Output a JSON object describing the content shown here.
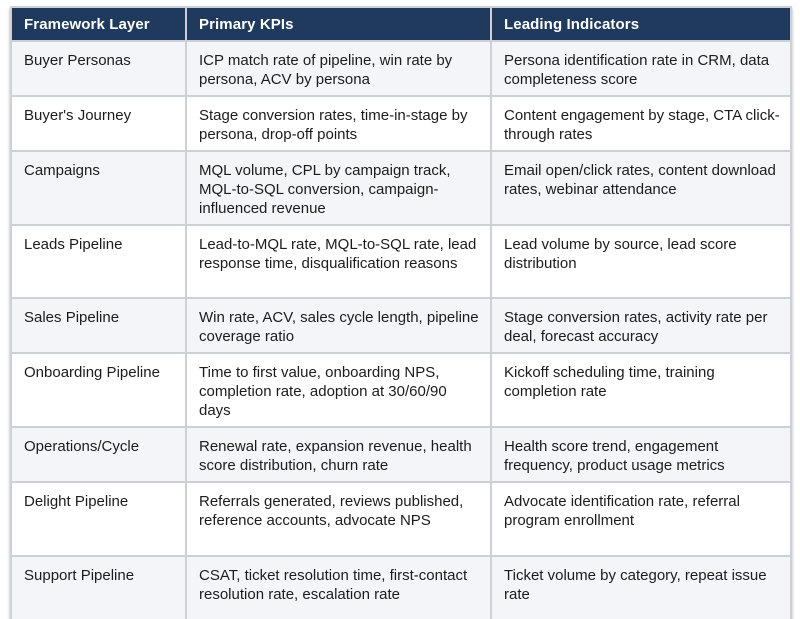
{
  "table": {
    "columns": [
      {
        "label": "Framework Layer"
      },
      {
        "label": "Primary KPIs"
      },
      {
        "label": "Leading Indicators"
      }
    ],
    "rows": [
      {
        "layer": "Buyer Personas",
        "kpis": "ICP match rate of pipeline, win rate by persona, ACV by persona",
        "indicators": "Persona identification rate in CRM, data completeness score"
      },
      {
        "layer": "Buyer's Journey",
        "kpis": "Stage conversion rates, time-in-stage by persona, drop-off points",
        "indicators": "Content engagement by stage, CTA click-through rates"
      },
      {
        "layer": "Campaigns",
        "kpis": "MQL volume, CPL by campaign track, MQL-to-SQL conversion, campaign-influenced revenue",
        "indicators": "Email open/click rates, content download rates, webinar attendance"
      },
      {
        "layer": "Leads Pipeline",
        "kpis": "Lead-to-MQL rate, MQL-to-SQL rate, lead response time, disqualification reasons",
        "indicators": "Lead volume by source, lead score distribution"
      },
      {
        "layer": "Sales Pipeline",
        "kpis": "Win rate, ACV, sales cycle length, pipeline coverage ratio",
        "indicators": "Stage conversion rates, activity rate per deal, forecast accuracy"
      },
      {
        "layer": "Onboarding Pipeline",
        "kpis": "Time to first value, onboarding NPS, completion rate, adoption at 30/60/90 days",
        "indicators": "Kickoff scheduling time, training completion rate"
      },
      {
        "layer": "Operations/Cycle",
        "kpis": "Renewal rate, expansion revenue, health score distribution, churn rate",
        "indicators": "Health score trend, engagement frequency, product usage metrics"
      },
      {
        "layer": "Delight Pipeline",
        "kpis": "Referrals generated, reviews published, reference accounts, advocate NPS",
        "indicators": "Advocate identification rate, referral program enrollment"
      },
      {
        "layer": "Support Pipeline",
        "kpis": "CSAT, ticket resolution time, first-contact resolution rate, escalation rate",
        "indicators": "Ticket volume by category, repeat issue rate"
      }
    ]
  },
  "colors": {
    "header_bg": "#1f3a5c",
    "header_text": "#ffffff",
    "row_stripe_bg": "#f3f5f9",
    "row_bg": "#ffffff",
    "border": "#ccd1d8",
    "body_text": "#1c1c1c"
  }
}
